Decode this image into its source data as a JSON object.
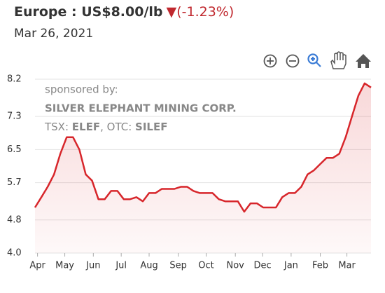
{
  "chart_data": {
    "type": "line",
    "title": "Europe : US$8.00/lb",
    "change_marker": "▼",
    "change": "(-1.23%)",
    "subtitle": "Mar 26, 2021",
    "sponsor": {
      "label": "sponsored by:",
      "company": "SILVER ELEPHANT MINING CORP.",
      "tickers": [
        "TSX: ",
        "ELEF",
        ", OTC: ",
        "SILEF"
      ]
    },
    "x": [
      0,
      1,
      2,
      3,
      4,
      5,
      6,
      7,
      8,
      9,
      10,
      11,
      12,
      13,
      14,
      15,
      16,
      17,
      18,
      19,
      20,
      21,
      22,
      23,
      24,
      25,
      26,
      27,
      28,
      29,
      30,
      31,
      32,
      33,
      34,
      35,
      36,
      37,
      38,
      39,
      40,
      41,
      42,
      43,
      44,
      45,
      46,
      47,
      48,
      49,
      50,
      51,
      52,
      53
    ],
    "series": [
      {
        "name": "Europe",
        "color": "#d7262b",
        "values": [
          5.1,
          5.35,
          5.6,
          5.9,
          6.4,
          6.8,
          6.8,
          6.5,
          5.9,
          5.75,
          5.3,
          5.3,
          5.5,
          5.5,
          5.3,
          5.3,
          5.35,
          5.25,
          5.45,
          5.45,
          5.55,
          5.55,
          5.55,
          5.6,
          5.6,
          5.5,
          5.45,
          5.45,
          5.45,
          5.3,
          5.25,
          5.25,
          5.25,
          5.0,
          5.2,
          5.2,
          5.1,
          5.1,
          5.1,
          5.35,
          5.45,
          5.45,
          5.6,
          5.9,
          6.0,
          6.15,
          6.3,
          6.3,
          6.4,
          6.8,
          7.3,
          7.8,
          8.1,
          8.0
        ]
      }
    ],
    "xlim": [
      0,
      53
    ],
    "xticks": [
      {
        "value": 0.4,
        "label": "Apr"
      },
      {
        "value": 4.7,
        "label": "May"
      },
      {
        "value": 9.2,
        "label": "Jun"
      },
      {
        "value": 13.6,
        "label": "Jul"
      },
      {
        "value": 18.0,
        "label": "Aug"
      },
      {
        "value": 22.6,
        "label": "Sep"
      },
      {
        "value": 27.0,
        "label": "Oct"
      },
      {
        "value": 31.6,
        "label": "Nov"
      },
      {
        "value": 35.9,
        "label": "Dec"
      },
      {
        "value": 40.4,
        "label": "Jan"
      },
      {
        "value": 45.0,
        "label": "Feb"
      },
      {
        "value": 49.2,
        "label": "Mar"
      }
    ],
    "ylim": [
      4.0,
      8.2
    ],
    "yticks": [
      {
        "value": 4.0,
        "label": "4.0"
      },
      4.8,
      5.7,
      6.5,
      7.3,
      8.2
    ],
    "grid": true
  }
}
